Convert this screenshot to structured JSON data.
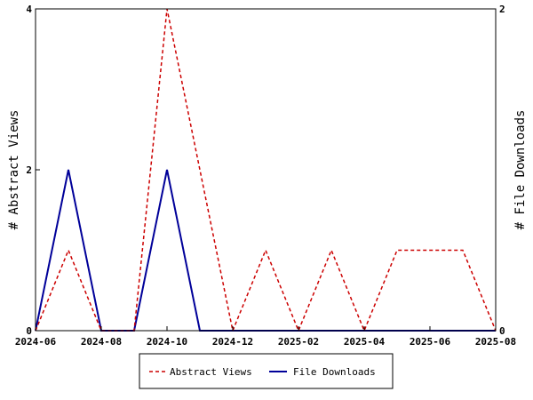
{
  "chart_data": {
    "type": "line",
    "x_type": "date",
    "x": [
      "2024-06",
      "2024-07",
      "2024-08",
      "2024-09",
      "2024-10",
      "2024-11",
      "2024-12",
      "2025-01",
      "2025-02",
      "2025-03",
      "2025-04",
      "2025-05",
      "2025-06",
      "2025-07",
      "2025-08"
    ],
    "x_ticks": [
      "2024-06",
      "2024-08",
      "2024-10",
      "2024-12",
      "2025-02",
      "2025-04",
      "2025-06",
      "2025-08"
    ],
    "series": [
      {
        "name": "Abstract Views",
        "axis": "left",
        "color": "#cc0000",
        "dash": "dashed",
        "values": [
          0,
          1,
          0,
          0,
          4,
          2,
          0,
          1,
          0,
          1,
          0,
          1,
          1,
          1,
          0
        ]
      },
      {
        "name": "File Downloads",
        "axis": "right",
        "color": "#000099",
        "dash": "solid",
        "values": [
          0,
          1,
          0,
          0,
          1,
          0,
          0,
          0,
          0,
          0,
          0,
          0,
          0,
          0,
          0
        ]
      }
    ],
    "y_left": {
      "label": "# Abstract Views",
      "ylim": [
        0,
        4
      ],
      "ticks": [
        0,
        2,
        4
      ]
    },
    "y_right": {
      "label": "# File Downloads",
      "ylim": [
        0,
        2
      ],
      "ticks": [
        0,
        2
      ]
    },
    "legend_position": "bottom",
    "grid": false
  }
}
